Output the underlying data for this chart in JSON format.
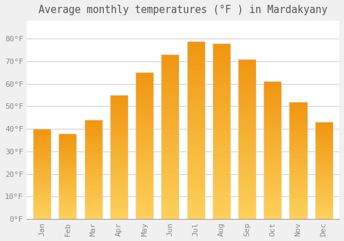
{
  "title": "Average monthly temperatures (°F ) in Mardakyany",
  "months": [
    "Jan",
    "Feb",
    "Mar",
    "Apr",
    "May",
    "Jun",
    "Jul",
    "Aug",
    "Sep",
    "Oct",
    "Nov",
    "Dec"
  ],
  "values": [
    40,
    38,
    44,
    55,
    65,
    73,
    79,
    78,
    71,
    61,
    52,
    43
  ],
  "bar_color": "#F5A623",
  "bar_bottom_color": "#FDD05A",
  "background_color": "#f0f0f0",
  "plot_bg_color": "#ffffff",
  "grid_color": "#d0d0d0",
  "ylim": [
    0,
    88
  ],
  "yticks": [
    0,
    10,
    20,
    30,
    40,
    50,
    60,
    70,
    80
  ],
  "ytick_labels": [
    "0°F",
    "10°F",
    "20°F",
    "30°F",
    "40°F",
    "50°F",
    "60°F",
    "70°F",
    "80°F"
  ],
  "title_fontsize": 10.5,
  "tick_fontsize": 8,
  "title_color": "#555555",
  "tick_color": "#888888",
  "bar_width": 0.7,
  "bar_edge_color": "#e8e8e8"
}
